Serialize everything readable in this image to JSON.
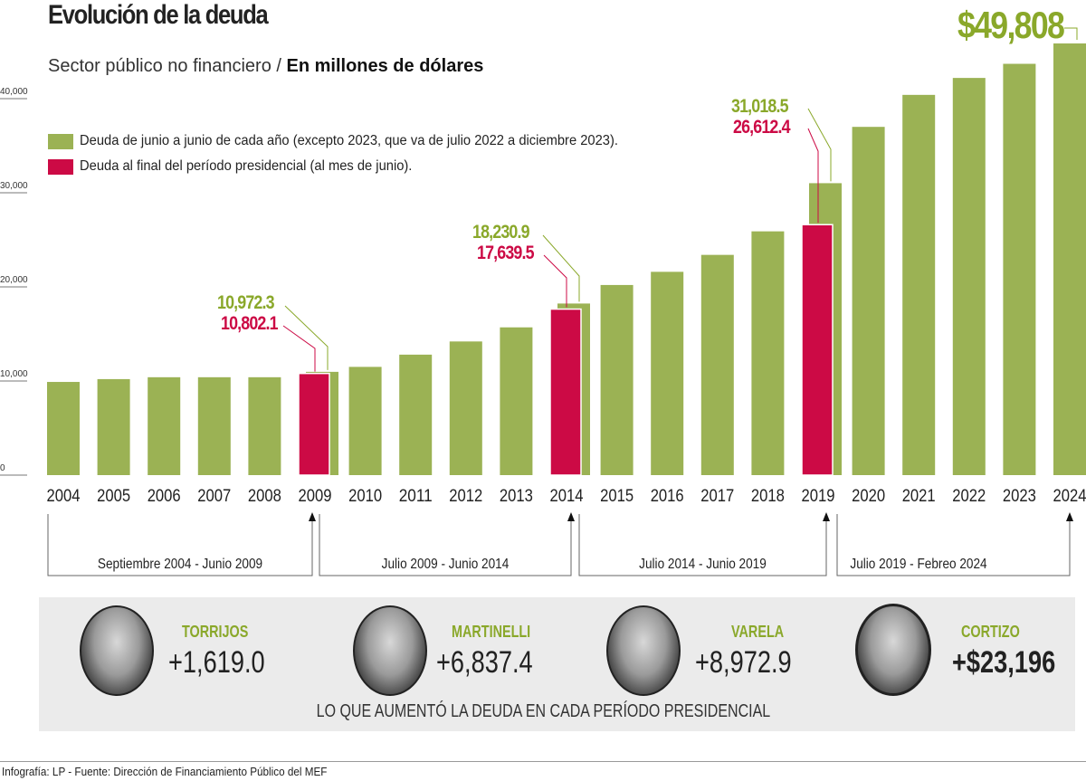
{
  "header": {
    "title": "Evolución de la deuda",
    "subtitle_plain": "Sector público no financiero / ",
    "subtitle_bold": "En millones de dólares"
  },
  "colors": {
    "green": "#9bb254",
    "red": "#cc0a45",
    "green_text": "#8aa82a",
    "panel": "#ebebeb"
  },
  "chart_data": {
    "type": "bar",
    "title": "Evolución de la deuda",
    "ylabel": "En millones de dólares",
    "ylim": [
      0,
      46000
    ],
    "yticks": [
      "0",
      "10,000",
      "20,000",
      "30,000",
      "40,000"
    ],
    "ytick_values": [
      0,
      10000,
      20000,
      30000,
      40000
    ],
    "categories": [
      "2004",
      "2005",
      "2006",
      "2007",
      "2008",
      "2009",
      "2010",
      "2011",
      "2012",
      "2013",
      "2014",
      "2015",
      "2016",
      "2017",
      "2018",
      "2019",
      "2020",
      "2021",
      "2022",
      "2023",
      "2024"
    ],
    "legend": [
      {
        "name": "Deuda de junio a junio de cada año (excepto 2023, que va de julio 2022 a diciembre 2023).",
        "color": "#9bb254"
      },
      {
        "name": "Deuda al final del período presidencial (al mes de junio).",
        "color": "#cc0a45"
      }
    ],
    "series": [
      {
        "name": "Deuda de junio a junio de cada año",
        "color": "#9bb254",
        "values": [
          9900,
          10200,
          10400,
          10400,
          10400,
          10972.3,
          11500,
          12800,
          14200,
          15700,
          18230.9,
          20200,
          21600,
          23400,
          25900,
          31018.5,
          37000,
          40400,
          42200,
          43700,
          49808
        ]
      },
      {
        "name": "Deuda al final del período presidencial",
        "color": "#cc0a45",
        "values": [
          null,
          null,
          null,
          null,
          null,
          10802.1,
          null,
          null,
          null,
          null,
          17639.5,
          null,
          null,
          null,
          null,
          26612.4,
          null,
          null,
          null,
          null,
          null
        ]
      }
    ],
    "annotations": [
      {
        "year": "2009",
        "green": "10,972.3",
        "red": "10,802.1"
      },
      {
        "year": "2014",
        "green": "18,230.9",
        "red": "17,639.5"
      },
      {
        "year": "2019",
        "green": "31,018.5",
        "red": "26,612.4"
      }
    ],
    "highlight_label": "$49,808"
  },
  "periods": [
    {
      "label": "Septiembre 2004 - Junio 2009"
    },
    {
      "label": "Julio 2009 - Junio 2014"
    },
    {
      "label": "Julio 2014 - Junio 2019"
    },
    {
      "label": "Julio 2019 - Febreo 2024"
    }
  ],
  "presidents": [
    {
      "name": "TORRIJOS",
      "increase": "+1,619.0"
    },
    {
      "name": "MARTINELLI",
      "increase": "+6,837.4"
    },
    {
      "name": "VARELA",
      "increase": "+8,972.9"
    },
    {
      "name": "CORTIZO",
      "increase": "+$23,196"
    }
  ],
  "caption": "LO QUE AUMENTÓ LA DEUDA EN CADA PERÍODO PRESIDENCIAL",
  "footer": "Infografía: LP - Fuente: Dirección de Financiamiento Público del MEF"
}
